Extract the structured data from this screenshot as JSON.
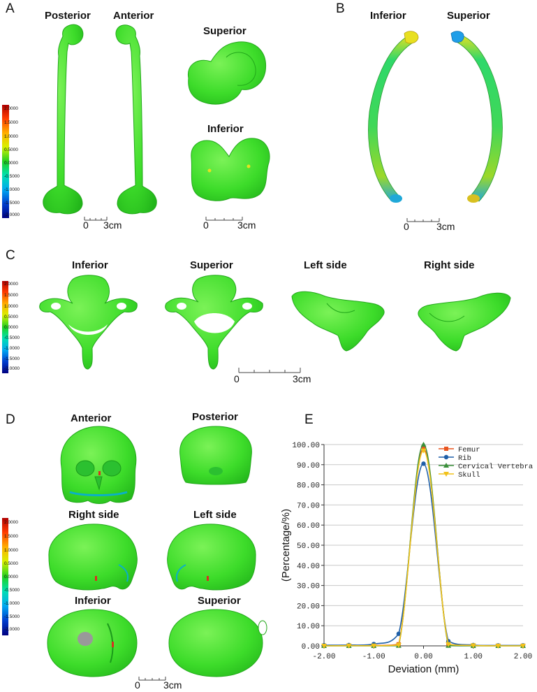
{
  "panels": {
    "A": {
      "letter": "A",
      "views": [
        "Posterior",
        "Anterior",
        "Superior",
        "Inferior"
      ],
      "scales": [
        {
          "zero": "0",
          "end": "3cm"
        },
        {
          "zero": "0",
          "end": "3cm"
        }
      ]
    },
    "B": {
      "letter": "B",
      "views": [
        "Inferior",
        "Superior"
      ],
      "scale": {
        "zero": "0",
        "end": "3cm"
      }
    },
    "C": {
      "letter": "C",
      "views": [
        "Inferior",
        "Superior",
        "Left side",
        "Right side"
      ],
      "scale": {
        "zero": "0",
        "end": "3cm"
      }
    },
    "D": {
      "letter": "D",
      "views": [
        "Anterior",
        "Posterior",
        "Right side",
        "Left side",
        "Inferior",
        "Superior"
      ],
      "scale": {
        "zero": "0",
        "end": "3cm"
      }
    },
    "E": {
      "letter": "E"
    }
  },
  "colorbar": {
    "ticks": [
      "2.0000",
      "1.5000",
      "1.0000",
      "0.5000",
      "0.0000",
      "-0.5000",
      "-1.0000",
      "-1.5000",
      "-2.0000"
    ]
  },
  "colors": {
    "mesh_green": "#3ddc2a",
    "femur": "#e8551f",
    "rib": "#1f5fa8",
    "cervical": "#3a8f3a",
    "skull": "#f2c21a"
  },
  "chart_data": {
    "type": "line",
    "xlabel": "Deviation (mm)",
    "ylabel": "(Percentage/%)",
    "xlim": [
      -2.0,
      2.0
    ],
    "ylim": [
      0,
      100
    ],
    "x": [
      -2.0,
      -1.5,
      -1.0,
      -0.5,
      0.0,
      0.5,
      1.0,
      1.5,
      2.0
    ],
    "xticks": [
      "-2.00",
      "-1.00",
      "0.00",
      "1.00",
      "2.00"
    ],
    "yticks": [
      "0.00",
      "10.00",
      "20.00",
      "30.00",
      "40.00",
      "50.00",
      "60.00",
      "70.00",
      "80.00",
      "90.00",
      "100.00"
    ],
    "grid": "horizontal",
    "legend": "top-right",
    "series": [
      {
        "name": "Femur",
        "marker": "square",
        "color": "#e8551f",
        "values": [
          0.1,
          0.1,
          0.2,
          0.8,
          98.0,
          0.8,
          0.2,
          0.1,
          0.1
        ]
      },
      {
        "name": "Rib",
        "marker": "circle",
        "color": "#1f5fa8",
        "values": [
          0.3,
          0.4,
          0.9,
          6.0,
          90.5,
          2.3,
          0.4,
          0.2,
          0.2
        ]
      },
      {
        "name": "Cervical Vertebra",
        "marker": "triangle-up",
        "color": "#3a8f3a",
        "values": [
          0.0,
          0.0,
          0.0,
          0.1,
          100.0,
          0.1,
          0.0,
          0.0,
          0.0
        ]
      },
      {
        "name": "Skull",
        "marker": "triangle-down",
        "color": "#f2c21a",
        "values": [
          0.0,
          0.1,
          0.1,
          0.4,
          97.0,
          0.8,
          0.2,
          0.0,
          0.0
        ]
      }
    ]
  }
}
